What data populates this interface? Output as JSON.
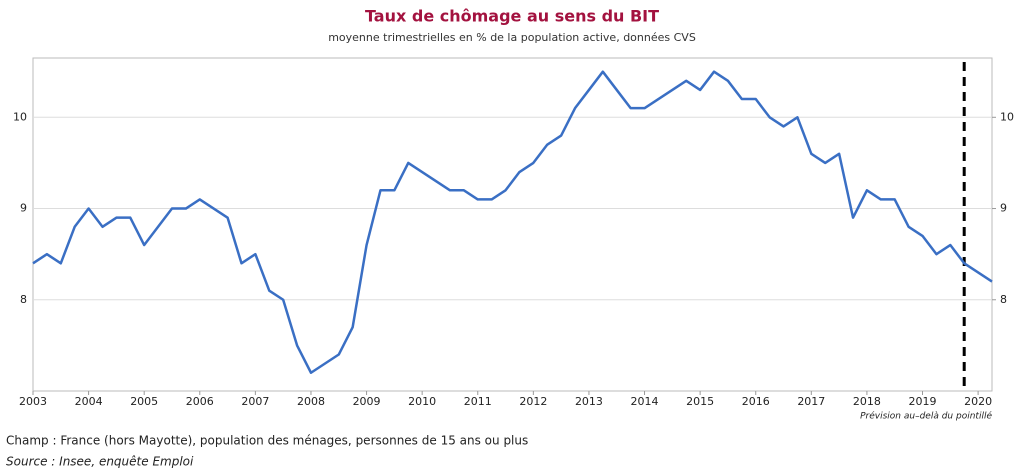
{
  "chart_data": {
    "type": "line",
    "title": "Taux de chômage au sens du BIT",
    "subtitle": "moyenne trimestrielles en % de la population active, données CVS",
    "note": "Prévision au–delà du pointillé",
    "footnote": "Champ : France (hors Mayotte), population des ménages, personnes de 15 ans ou plus",
    "source": "Source : Insee, enquête Emploi",
    "x": [
      2003,
      2003.25,
      2003.5,
      2003.75,
      2004,
      2004.25,
      2004.5,
      2004.75,
      2005,
      2005.25,
      2005.5,
      2005.75,
      2006,
      2006.25,
      2006.5,
      2006.75,
      2007,
      2007.25,
      2007.5,
      2007.75,
      2008,
      2008.25,
      2008.5,
      2008.75,
      2009,
      2009.25,
      2009.5,
      2009.75,
      2010,
      2010.25,
      2010.5,
      2010.75,
      2011,
      2011.25,
      2011.5,
      2011.75,
      2012,
      2012.25,
      2012.5,
      2012.75,
      2013,
      2013.25,
      2013.5,
      2013.75,
      2014,
      2014.25,
      2014.5,
      2014.75,
      2015,
      2015.25,
      2015.5,
      2015.75,
      2016,
      2016.25,
      2016.5,
      2016.75,
      2017,
      2017.25,
      2017.5,
      2017.75,
      2018,
      2018.25,
      2018.5,
      2018.75,
      2019,
      2019.25,
      2019.5,
      2019.75,
      2020,
      2020.25
    ],
    "series": [
      {
        "name": "Taux de chômage",
        "color": "#3a6fc4",
        "values": [
          8.4,
          8.5,
          8.4,
          8.8,
          9.0,
          8.8,
          8.9,
          8.9,
          8.6,
          8.8,
          9.0,
          9.0,
          9.1,
          9.0,
          8.9,
          8.4,
          8.5,
          8.1,
          8.0,
          7.5,
          7.2,
          7.3,
          7.4,
          7.7,
          8.6,
          9.2,
          9.2,
          9.5,
          9.4,
          9.3,
          9.2,
          9.2,
          9.1,
          9.1,
          9.2,
          9.4,
          9.5,
          9.7,
          9.8,
          10.1,
          10.3,
          10.5,
          10.3,
          10.1,
          10.1,
          10.2,
          10.3,
          10.4,
          10.3,
          10.5,
          10.4,
          10.2,
          10.2,
          10.0,
          9.9,
          10.0,
          9.6,
          9.5,
          9.6,
          8.9,
          9.2,
          9.1,
          9.1,
          8.8,
          8.7,
          8.5,
          8.6,
          8.4,
          8.3,
          8.2
        ]
      }
    ],
    "forecast_start": 2019.75,
    "xlim": [
      2003,
      2020.25
    ],
    "xticks": [
      2003,
      2004,
      2005,
      2006,
      2007,
      2008,
      2009,
      2010,
      2011,
      2012,
      2013,
      2014,
      2015,
      2016,
      2017,
      2018,
      2019,
      2020
    ],
    "ylim": [
      7,
      10.65
    ],
    "yticks": [
      8,
      9,
      10
    ],
    "y2lim": [
      7,
      10.65
    ],
    "y2ticks": [
      8,
      9,
      10
    ],
    "grid": true
  }
}
